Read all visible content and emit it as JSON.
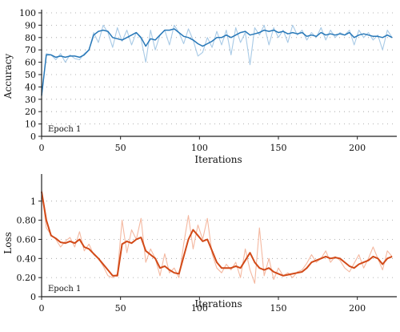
{
  "chart_data": [
    {
      "type": "line",
      "xlabel": "Iterations",
      "ylabel": "Accuracy",
      "annotation": "Epoch 1",
      "xlim": [
        0,
        225
      ],
      "ylim": [
        0,
        100
      ],
      "xticks": [
        0,
        50,
        100,
        150,
        200
      ],
      "yticks": [
        0,
        10,
        20,
        30,
        40,
        50,
        60,
        70,
        80,
        90,
        100
      ],
      "grid": "horizontal dotted",
      "colors": {
        "smoothed": "#2878b8",
        "raw": "#a8cae6"
      },
      "series": [
        {
          "style": "raw",
          "x": [
            0,
            3,
            6,
            9,
            12,
            15,
            18,
            21,
            24,
            27,
            30,
            33,
            36,
            39,
            42,
            45,
            48,
            51,
            54,
            57,
            60,
            63,
            66,
            69,
            72,
            75,
            78,
            81,
            84,
            87,
            90,
            93,
            96,
            99,
            102,
            105,
            108,
            111,
            114,
            117,
            120,
            123,
            126,
            129,
            132,
            135,
            138,
            141,
            144,
            147,
            150,
            153,
            156,
            159,
            162,
            165,
            168,
            171,
            174,
            177,
            180,
            183,
            186,
            189,
            192,
            195,
            198,
            201,
            204,
            207,
            210,
            213,
            216,
            219,
            222
          ],
          "values": [
            32,
            67,
            66,
            62,
            67,
            60,
            66,
            63,
            62,
            67,
            70,
            84,
            76,
            90,
            84,
            72,
            88,
            77,
            86,
            74,
            84,
            79,
            60,
            86,
            70,
            82,
            86,
            74,
            90,
            84,
            75,
            87,
            78,
            65,
            68,
            80,
            72,
            85,
            74,
            86,
            66,
            88,
            76,
            84,
            58,
            88,
            82,
            90,
            74,
            88,
            80,
            86,
            76,
            90,
            82,
            86,
            78,
            84,
            80,
            88,
            78,
            86,
            80,
            84,
            82,
            86,
            74,
            86,
            80,
            84,
            78,
            82,
            70,
            86,
            80
          ]
        },
        {
          "style": "smoothed",
          "x": [
            0,
            3,
            6,
            9,
            12,
            15,
            18,
            21,
            24,
            27,
            30,
            33,
            36,
            39,
            42,
            45,
            48,
            51,
            54,
            57,
            60,
            63,
            66,
            69,
            72,
            75,
            78,
            81,
            84,
            87,
            90,
            93,
            96,
            99,
            102,
            105,
            108,
            111,
            114,
            117,
            120,
            123,
            126,
            129,
            132,
            135,
            138,
            141,
            144,
            147,
            150,
            153,
            156,
            159,
            162,
            165,
            168,
            171,
            174,
            177,
            180,
            183,
            186,
            189,
            192,
            195,
            198,
            201,
            204,
            207,
            210,
            213,
            216,
            219,
            222
          ],
          "values": [
            33,
            66,
            66,
            64,
            65,
            64,
            65,
            65,
            64,
            66,
            70,
            82,
            85,
            86,
            85,
            80,
            79,
            78,
            80,
            82,
            84,
            80,
            73,
            79,
            78,
            82,
            86,
            86,
            87,
            84,
            81,
            80,
            78,
            75,
            73,
            75,
            77,
            80,
            80,
            82,
            80,
            82,
            84,
            85,
            82,
            83,
            84,
            86,
            85,
            86,
            84,
            85,
            83,
            84,
            83,
            84,
            81,
            82,
            81,
            84,
            82,
            83,
            82,
            83,
            82,
            84,
            80,
            82,
            83,
            82,
            81,
            81,
            80,
            82,
            80
          ]
        }
      ]
    },
    {
      "type": "line",
      "xlabel": "Iterations",
      "ylabel": "Loss",
      "annotation": "Epoch 1",
      "xlim": [
        0,
        225
      ],
      "ylim": [
        0,
        1.25
      ],
      "xticks": [
        0,
        50,
        100,
        150,
        200
      ],
      "yticks": [
        0,
        0.2,
        0.4,
        0.6,
        0.8,
        1
      ],
      "ytick_labels": [
        "0",
        "0.20",
        "0.40",
        "0.60",
        "0.80",
        "1"
      ],
      "grid": "horizontal dotted",
      "colors": {
        "smoothed": "#d24a18",
        "raw": "#f4b8a0"
      },
      "series": [
        {
          "style": "raw",
          "x": [
            0,
            3,
            6,
            9,
            12,
            15,
            18,
            21,
            24,
            27,
            30,
            33,
            36,
            39,
            42,
            45,
            48,
            51,
            54,
            57,
            60,
            63,
            66,
            69,
            72,
            75,
            78,
            81,
            84,
            87,
            90,
            93,
            96,
            99,
            102,
            105,
            108,
            111,
            114,
            117,
            120,
            123,
            126,
            129,
            132,
            135,
            138,
            141,
            144,
            147,
            150,
            153,
            156,
            159,
            162,
            165,
            168,
            171,
            174,
            177,
            180,
            183,
            186,
            189,
            192,
            195,
            198,
            201,
            204,
            207,
            210,
            213,
            216,
            219,
            222
          ],
          "values": [
            1.12,
            0.72,
            0.65,
            0.6,
            0.52,
            0.58,
            0.62,
            0.52,
            0.68,
            0.48,
            0.55,
            0.44,
            0.4,
            0.32,
            0.22,
            0.2,
            0.24,
            0.8,
            0.46,
            0.7,
            0.6,
            0.82,
            0.36,
            0.5,
            0.4,
            0.22,
            0.45,
            0.25,
            0.3,
            0.2,
            0.55,
            0.85,
            0.5,
            0.75,
            0.6,
            0.82,
            0.45,
            0.3,
            0.25,
            0.34,
            0.28,
            0.36,
            0.2,
            0.5,
            0.28,
            0.14,
            0.72,
            0.22,
            0.4,
            0.18,
            0.3,
            0.22,
            0.25,
            0.2,
            0.26,
            0.28,
            0.35,
            0.44,
            0.36,
            0.4,
            0.48,
            0.36,
            0.42,
            0.38,
            0.3,
            0.26,
            0.35,
            0.44,
            0.3,
            0.4,
            0.52,
            0.4,
            0.28,
            0.48,
            0.42
          ]
        },
        {
          "style": "smoothed",
          "x": [
            0,
            3,
            6,
            9,
            12,
            15,
            18,
            21,
            24,
            27,
            30,
            33,
            36,
            39,
            42,
            45,
            48,
            51,
            54,
            57,
            60,
            63,
            66,
            69,
            72,
            75,
            78,
            81,
            84,
            87,
            90,
            93,
            96,
            99,
            102,
            105,
            108,
            111,
            114,
            117,
            120,
            123,
            126,
            129,
            132,
            135,
            138,
            141,
            144,
            147,
            150,
            153,
            156,
            159,
            162,
            165,
            168,
            171,
            174,
            177,
            180,
            183,
            186,
            189,
            192,
            195,
            198,
            201,
            204,
            207,
            210,
            213,
            216,
            219,
            222
          ],
          "values": [
            1.1,
            0.8,
            0.64,
            0.61,
            0.57,
            0.56,
            0.58,
            0.56,
            0.6,
            0.52,
            0.5,
            0.45,
            0.4,
            0.34,
            0.28,
            0.22,
            0.22,
            0.55,
            0.58,
            0.56,
            0.6,
            0.62,
            0.48,
            0.44,
            0.4,
            0.3,
            0.32,
            0.28,
            0.25,
            0.24,
            0.42,
            0.6,
            0.7,
            0.64,
            0.58,
            0.6,
            0.48,
            0.36,
            0.3,
            0.3,
            0.3,
            0.32,
            0.3,
            0.38,
            0.46,
            0.36,
            0.3,
            0.28,
            0.3,
            0.26,
            0.24,
            0.22,
            0.23,
            0.24,
            0.25,
            0.26,
            0.3,
            0.36,
            0.38,
            0.4,
            0.42,
            0.4,
            0.41,
            0.4,
            0.36,
            0.32,
            0.3,
            0.34,
            0.36,
            0.38,
            0.42,
            0.4,
            0.34,
            0.4,
            0.42
          ]
        }
      ]
    }
  ]
}
